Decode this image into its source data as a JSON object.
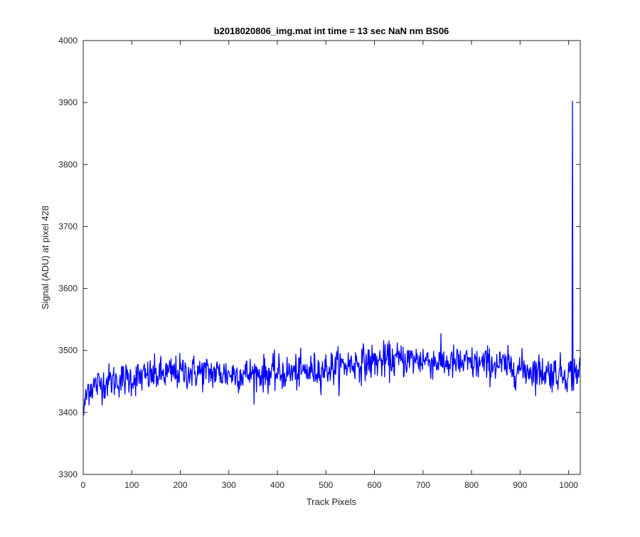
{
  "chart_data": {
    "type": "line",
    "title": "b2018020806_img.mat int time = 13 sec  NaN nm BS06",
    "xlabel": "Track Pixels",
    "ylabel": "Signal (ADU) at pixel 428",
    "xlim": [
      0,
      1024
    ],
    "ylim": [
      3300,
      4000
    ],
    "xticks": [
      0,
      100,
      200,
      300,
      400,
      500,
      600,
      700,
      800,
      900,
      1000
    ],
    "yticks": [
      3300,
      3400,
      3500,
      3600,
      3700,
      3800,
      3900,
      4000
    ],
    "grid": false,
    "series": [
      {
        "color": "#0000ff",
        "baseline": {
          "x": [
            0,
            10,
            50,
            100,
            150,
            200,
            250,
            300,
            350,
            400,
            450,
            500,
            550,
            600,
            650,
            700,
            750,
            800,
            850,
            900,
            950,
            1000,
            1024
          ],
          "y": [
            3395,
            3440,
            3450,
            3455,
            3460,
            3465,
            3465,
            3462,
            3462,
            3463,
            3465,
            3470,
            3478,
            3482,
            3485,
            3485,
            3480,
            3478,
            3478,
            3470,
            3465,
            3462,
            3468
          ]
        },
        "noise_range": [
          3412,
          3532
        ],
        "spike": {
          "x": [
            1007,
            1008,
            1009
          ],
          "y": [
            3435,
            3902,
            3450
          ]
        }
      }
    ]
  }
}
